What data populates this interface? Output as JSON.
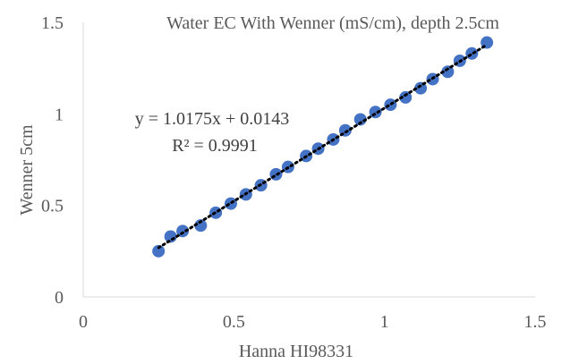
{
  "chart_data": {
    "type": "scatter",
    "title": "Water EC With Wenner (mS/cm), depth 2.5cm",
    "xlabel": "Hanna HI98331",
    "ylabel": "Wenner 5cm",
    "xlim": [
      0,
      1.5
    ],
    "ylim": [
      0,
      1.5
    ],
    "x_ticks": [
      "0",
      "0.5",
      "1",
      "1.5"
    ],
    "y_ticks": [
      "0",
      "0.5",
      "1",
      "1.5"
    ],
    "grid": false,
    "legend": "none",
    "series": [
      {
        "color": "#4472C4",
        "x": [
          0.25,
          0.29,
          0.33,
          0.39,
          0.44,
          0.49,
          0.54,
          0.59,
          0.64,
          0.68,
          0.74,
          0.78,
          0.83,
          0.87,
          0.92,
          0.97,
          1.02,
          1.07,
          1.12,
          1.16,
          1.21,
          1.25,
          1.29,
          1.34
        ],
        "y": [
          0.25,
          0.33,
          0.36,
          0.39,
          0.46,
          0.51,
          0.56,
          0.61,
          0.67,
          0.71,
          0.77,
          0.81,
          0.86,
          0.91,
          0.97,
          1.01,
          1.05,
          1.09,
          1.14,
          1.19,
          1.23,
          1.29,
          1.33,
          1.39
        ]
      }
    ],
    "trendline": {
      "type": "linear",
      "slope": 1.0175,
      "intercept": 0.0143,
      "x_range": [
        0.25,
        1.34
      ],
      "color": "#000000",
      "style": "dotted"
    },
    "annotations": {
      "equation": "y = 1.0175x + 0.0143",
      "r_squared": "R² = 0.9991"
    }
  }
}
